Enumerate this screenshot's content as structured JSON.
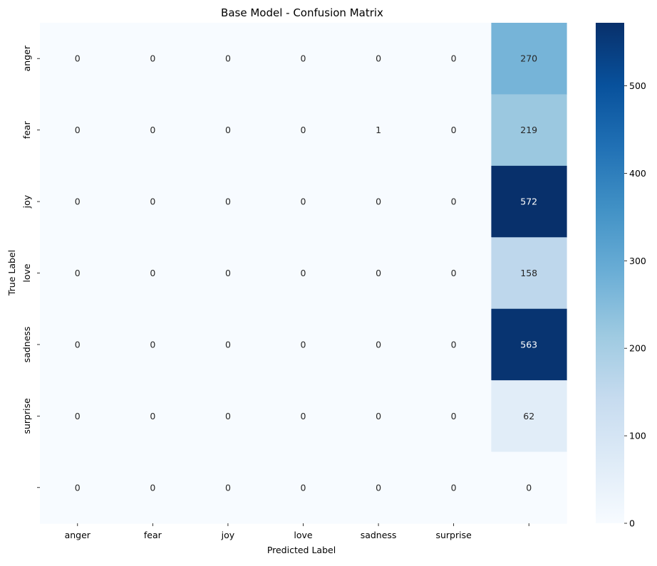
{
  "chart_data": {
    "type": "heatmap",
    "title": "Base Model - Confusion Matrix",
    "xlabel": "Predicted Label",
    "ylabel": "True Label",
    "x_tick_labels": [
      "anger",
      "fear",
      "joy",
      "love",
      "sadness",
      "surprise",
      ""
    ],
    "y_tick_labels": [
      "anger",
      "fear",
      "joy",
      "love",
      "sadness",
      "surprise",
      ""
    ],
    "matrix": [
      [
        0,
        0,
        0,
        0,
        0,
        0,
        270
      ],
      [
        0,
        0,
        0,
        0,
        1,
        0,
        219
      ],
      [
        0,
        0,
        0,
        0,
        0,
        0,
        572
      ],
      [
        0,
        0,
        0,
        0,
        0,
        0,
        158
      ],
      [
        0,
        0,
        0,
        0,
        0,
        0,
        563
      ],
      [
        0,
        0,
        0,
        0,
        0,
        0,
        62
      ],
      [
        0,
        0,
        0,
        0,
        0,
        0,
        0
      ]
    ],
    "colormap": "Blues",
    "vmin": 0,
    "vmax": 572,
    "colorbar_ticks": [
      0,
      100,
      200,
      300,
      400,
      500
    ],
    "colorbar_tick_labels": [
      "0",
      "100",
      "200",
      "300",
      "400",
      "500"
    ]
  }
}
